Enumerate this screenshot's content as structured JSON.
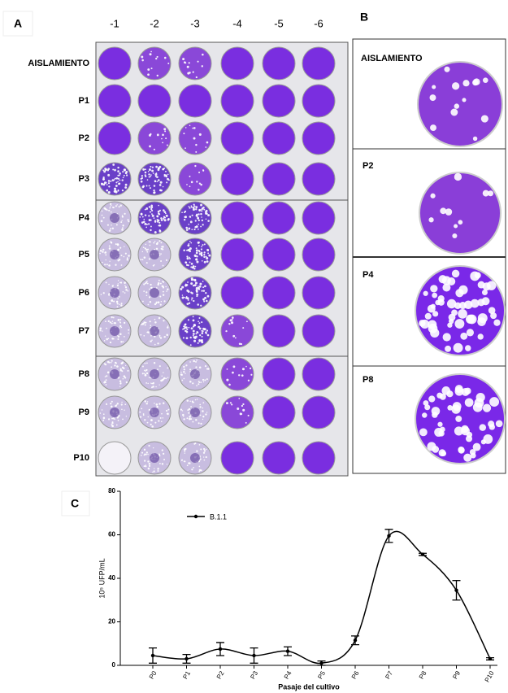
{
  "figure": {
    "panel_labels": [
      "A",
      "B",
      "C"
    ]
  },
  "panel_a": {
    "dilutions": [
      "-1",
      "-2",
      "-3",
      "-4",
      "-5",
      "-6"
    ],
    "rows": [
      "AISLAMIENTO",
      "P1",
      "P2",
      "P3",
      "P4",
      "P5",
      "P6",
      "P7",
      "P8",
      "P9",
      "P10"
    ]
  },
  "panel_b": {
    "plates": [
      "AISLAMIENTO",
      "P2",
      "P4",
      "P8"
    ]
  },
  "chart_data": {
    "type": "line",
    "x_label": "Pasaje del cultivo",
    "y_label": "10⁵ UFP/mL",
    "categories": [
      "P0",
      "P1",
      "P2",
      "P3",
      "P4",
      "P5",
      "P6",
      "P7",
      "P8",
      "P9",
      "P10"
    ],
    "series": [
      {
        "name": "B.1.1",
        "color": "#000000",
        "values": [
          4.5,
          3,
          7.5,
          4.5,
          6.5,
          1,
          11.5,
          59.5,
          51,
          34.5,
          3
        ],
        "errors": [
          3.5,
          2,
          3,
          3.5,
          2,
          1,
          2,
          3,
          0.5,
          4.5,
          0.5
        ]
      }
    ],
    "ylim": [
      0,
      80
    ],
    "yticks": [
      0,
      20,
      40,
      60,
      80
    ]
  }
}
